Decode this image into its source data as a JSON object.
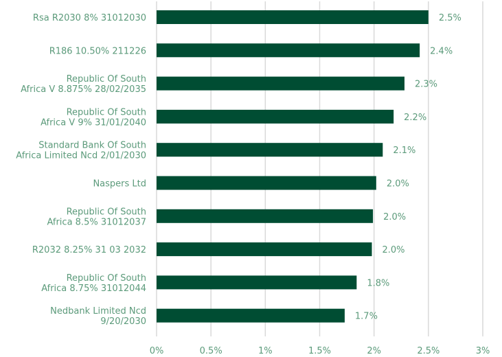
{
  "chart_data": {
    "type": "bar",
    "orientation": "horizontal",
    "categories": [
      [
        "Rsa R2030 8% 31012030"
      ],
      [
        "R186 10.50% 211226"
      ],
      [
        "Republic Of South",
        "Africa V 8.875% 28/02/2035"
      ],
      [
        "Republic Of South",
        "Africa V 9% 31/01/2040"
      ],
      [
        "Standard Bank Of South",
        "Africa Limited Ncd 2/01/2030"
      ],
      [
        "Naspers Ltd"
      ],
      [
        "Republic Of South",
        "Africa 8.5% 31012037"
      ],
      [
        "R2032 8.25% 31 03 2032"
      ],
      [
        "Republic Of South",
        "Africa 8.75% 31012044"
      ],
      [
        "Nedbank Limited Ncd",
        "9/20/2030"
      ]
    ],
    "values": [
      2.5,
      2.42,
      2.28,
      2.18,
      2.08,
      2.02,
      1.99,
      1.98,
      1.84,
      1.73
    ],
    "value_labels": [
      "2.5%",
      "2.4%",
      "2.3%",
      "2.2%",
      "2.1%",
      "2.0%",
      "2.0%",
      "2.0%",
      "1.8%",
      "1.7%"
    ],
    "xticks": [
      0,
      0.5,
      1,
      1.5,
      2,
      2.5,
      3
    ],
    "xtick_labels": [
      "0%",
      "0.5%",
      "1%",
      "1.5%",
      "2%",
      "2.5%",
      "3%"
    ],
    "xlim": [
      0,
      3
    ],
    "grid": "vertical",
    "title": "",
    "xlabel": "",
    "ylabel": "",
    "colors": {
      "bar": "#004d33",
      "grid": "#d9d9d9",
      "text": "#5b9a7a"
    }
  }
}
